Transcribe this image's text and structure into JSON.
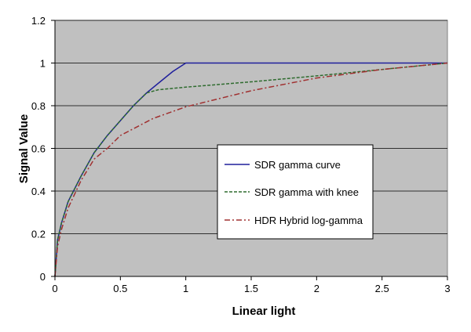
{
  "chart_data": {
    "type": "line",
    "xlabel": "Linear light",
    "ylabel": "Signal Value",
    "xlim": [
      0,
      3
    ],
    "ylim": [
      0,
      1.2
    ],
    "xticks": [
      0,
      0.5,
      1,
      1.5,
      2,
      2.5,
      3
    ],
    "xtick_labels": [
      "0",
      "0.5",
      "1",
      "1.5",
      "2",
      "2.5",
      "3"
    ],
    "yticks": [
      0,
      0.2,
      0.4,
      0.6,
      0.8,
      1,
      1.2
    ],
    "ytick_labels": [
      "0",
      "0.2",
      "0.4",
      "0.6",
      "0.8",
      "1",
      "1.2"
    ],
    "grid": "horizontal",
    "plot_background": "#c0c0c0",
    "legend_position": "center-right",
    "series": [
      {
        "name": "SDR gamma curve",
        "color": "#1f1f9c",
        "style": "solid",
        "x": [
          0,
          0.02,
          0.05,
          0.1,
          0.2,
          0.3,
          0.4,
          0.5,
          0.6,
          0.7,
          0.8,
          0.9,
          1.0,
          1.5,
          2.0,
          2.5,
          3.0
        ],
        "y": [
          0,
          0.17,
          0.25,
          0.35,
          0.47,
          0.58,
          0.66,
          0.73,
          0.8,
          0.86,
          0.91,
          0.96,
          1.0,
          1.0,
          1.0,
          1.0,
          1.0
        ]
      },
      {
        "name": "SDR gamma with knee",
        "color": "#2e6b2e",
        "style": "dashed",
        "x": [
          0,
          0.02,
          0.05,
          0.1,
          0.2,
          0.3,
          0.4,
          0.5,
          0.6,
          0.7,
          0.79,
          1.0,
          1.5,
          2.0,
          2.5,
          3.0
        ],
        "y": [
          0,
          0.17,
          0.25,
          0.35,
          0.47,
          0.58,
          0.66,
          0.73,
          0.8,
          0.86,
          0.875,
          0.887,
          0.912,
          0.94,
          0.97,
          1.0
        ]
      },
      {
        "name": "HDR Hybrid log-gamma",
        "color": "#a03030",
        "style": "dash-dot",
        "x": [
          0,
          0.02,
          0.05,
          0.1,
          0.2,
          0.3,
          0.4,
          0.5,
          0.75,
          1.0,
          1.5,
          2.0,
          2.5,
          3.0
        ],
        "y": [
          0,
          0.14,
          0.22,
          0.32,
          0.45,
          0.55,
          0.6,
          0.66,
          0.74,
          0.795,
          0.87,
          0.93,
          0.97,
          1.0
        ]
      }
    ]
  }
}
